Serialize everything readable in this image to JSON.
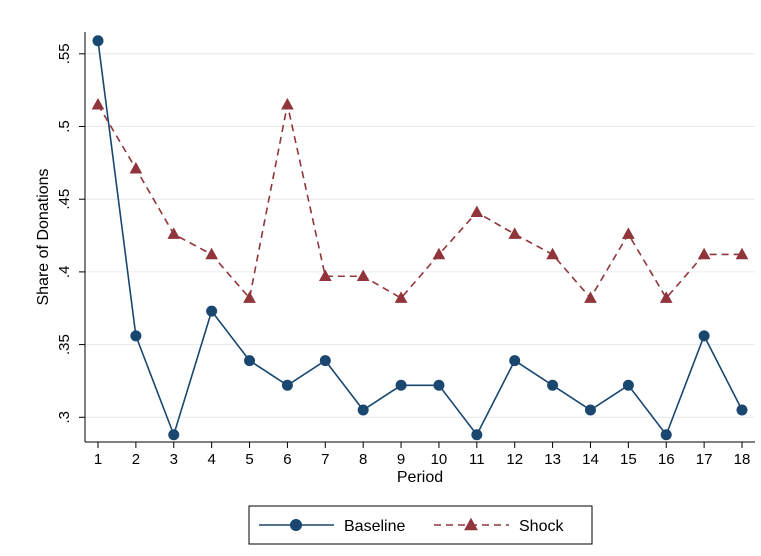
{
  "chart_data": {
    "type": "line",
    "title": "",
    "xlabel": "Period",
    "ylabel": "Share of Donations",
    "x": [
      1,
      2,
      3,
      4,
      5,
      6,
      7,
      8,
      9,
      10,
      11,
      12,
      13,
      14,
      15,
      16,
      17,
      18
    ],
    "xticks": [
      "1",
      "2",
      "3",
      "4",
      "5",
      "6",
      "7",
      "8",
      "9",
      "10",
      "11",
      "12",
      "13",
      "14",
      "15",
      "16",
      "17",
      "18"
    ],
    "yticks": [
      ".3",
      ".35",
      ".4",
      ".45",
      ".5",
      ".55"
    ],
    "ylim": [
      0.283,
      0.565
    ],
    "grid": true,
    "legend_position": "bottom",
    "series": [
      {
        "name": "Baseline",
        "color": "#1a476f",
        "marker": "circle",
        "line_style": "solid",
        "values": [
          0.559,
          0.356,
          0.288,
          0.373,
          0.339,
          0.322,
          0.339,
          0.305,
          0.322,
          0.322,
          0.288,
          0.339,
          0.322,
          0.305,
          0.322,
          0.288,
          0.356,
          0.305
        ]
      },
      {
        "name": "Shock",
        "color": "#90353b",
        "marker": "triangle",
        "line_style": "dashed",
        "values": [
          0.515,
          0.471,
          0.426,
          0.412,
          0.382,
          0.515,
          0.397,
          0.397,
          0.382,
          0.412,
          0.441,
          0.426,
          0.412,
          0.382,
          0.426,
          0.382,
          0.412,
          0.412
        ]
      }
    ]
  }
}
